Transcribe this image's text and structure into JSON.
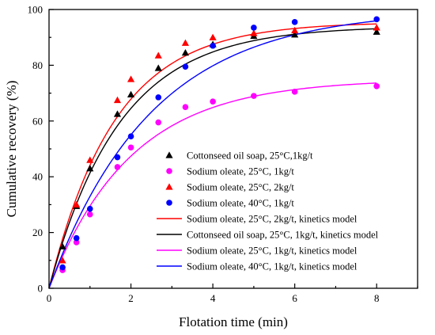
{
  "chart_data": {
    "type": "scatter",
    "xlabel": "Flotation time (min)",
    "ylabel": "Cumulative recovery (%)",
    "xlim": [
      0,
      9
    ],
    "ylim": [
      0,
      100
    ],
    "xticks": [
      0,
      2,
      4,
      6,
      8
    ],
    "yticks": [
      0,
      20,
      40,
      60,
      80,
      100
    ],
    "grid": false,
    "legend_position": "bottom-right",
    "points": [
      {
        "name": "Cottonseed oil soap, 25°C,1kg/t",
        "marker": "triangle",
        "color": "#000000",
        "x": [
          0.33,
          0.67,
          1,
          1.67,
          2,
          2.67,
          3.33,
          4,
          5,
          6,
          8
        ],
        "y": [
          15,
          29.5,
          43,
          62.5,
          69.5,
          79,
          84.5,
          87.5,
          90.5,
          91,
          92
        ]
      },
      {
        "name": "Sodium oleate, 25°C, 1kg/t",
        "marker": "circle",
        "color": "#ff00ff",
        "x": [
          0.33,
          0.67,
          1,
          1.67,
          2,
          2.67,
          3.33,
          4,
          5,
          6,
          8
        ],
        "y": [
          6.5,
          16.5,
          26.5,
          43.5,
          50.5,
          59.5,
          65,
          67,
          69,
          70.5,
          72.5
        ]
      },
      {
        "name": "Sodium oleate, 25°C, 2kg/t",
        "marker": "triangle",
        "color": "#ff0000",
        "x": [
          0.33,
          0.67,
          1,
          1.67,
          2,
          2.67,
          3.33,
          4,
          5,
          6,
          8
        ],
        "y": [
          10,
          30,
          46,
          67.5,
          75,
          83.5,
          88,
          90,
          91.5,
          92.5,
          93.5
        ]
      },
      {
        "name": "Sodium oleate, 40°C, 1kg/t",
        "marker": "circle",
        "color": "#0000ff",
        "x": [
          0.33,
          0.67,
          1,
          1.67,
          2,
          2.67,
          3.33,
          4,
          5,
          6,
          8
        ],
        "y": [
          7.5,
          18,
          28.5,
          47,
          54.5,
          68.5,
          79.5,
          87,
          93.5,
          95.5,
          96.5
        ]
      }
    ],
    "models": [
      {
        "name": "Sodium oleate, 25°C, 2kg/t, kinetics model",
        "color": "#ff0000",
        "asymptote": 95.5,
        "rate": 0.62
      },
      {
        "name": "Cottonseed oil soap, 25°C, 1kg/t, kinetics model",
        "color": "#000000",
        "asymptote": 94,
        "rate": 0.58
      },
      {
        "name": "Sodium oleate, 25°C, 1kg/t, kinetics model",
        "color": "#ff00ff",
        "asymptote": 75,
        "rate": 0.5
      },
      {
        "name": "Sodium oleate, 40°C, 1kg/t, kinetics model",
        "color": "#0000ff",
        "asymptote": 100,
        "rate": 0.4
      }
    ]
  }
}
